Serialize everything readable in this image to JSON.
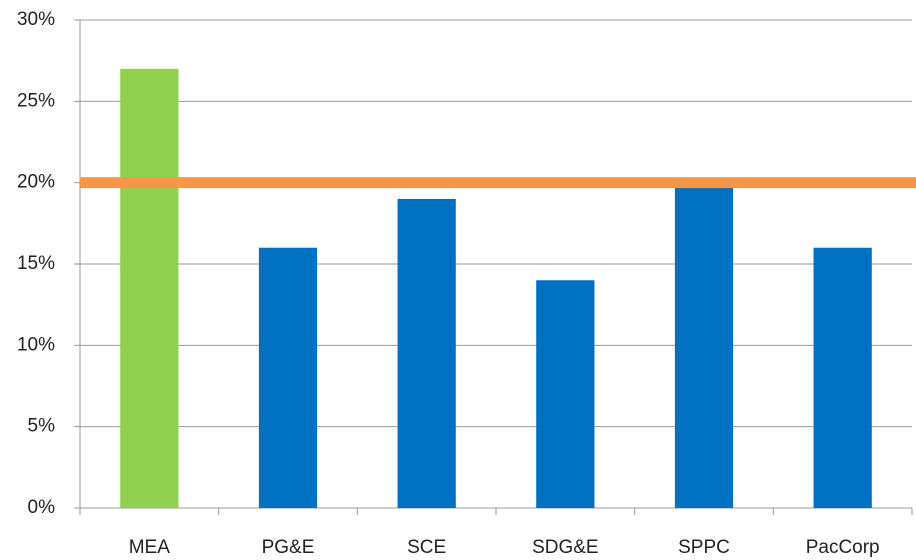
{
  "chart_data": {
    "type": "bar",
    "categories": [
      "MEA",
      "PG&E",
      "SCE",
      "SDG&E",
      "SPPC",
      "PacCorp"
    ],
    "values": [
      27,
      16,
      19,
      14,
      20,
      16
    ],
    "colors": [
      "#92d050",
      "#0070c0",
      "#0070c0",
      "#0070c0",
      "#0070c0",
      "#0070c0"
    ],
    "reference_line": {
      "value": 20,
      "color": "#f79646"
    },
    "ylim": [
      0,
      30
    ],
    "yticks": [
      {
        "value": 0,
        "label": "0%"
      },
      {
        "value": 5,
        "label": "5%"
      },
      {
        "value": 10,
        "label": "10%"
      },
      {
        "value": 15,
        "label": "15%"
      },
      {
        "value": 20,
        "label": "20%"
      },
      {
        "value": 25,
        "label": "25%"
      },
      {
        "value": 30,
        "label": "30%"
      }
    ],
    "grid": true
  }
}
